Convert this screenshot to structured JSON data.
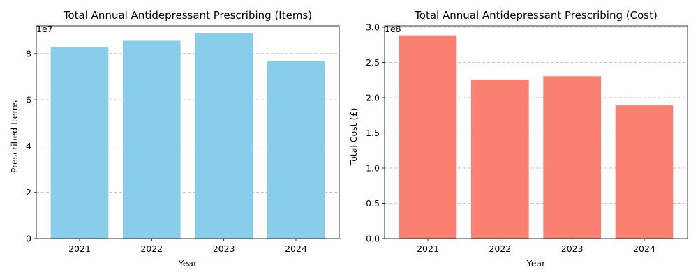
{
  "chart_data": [
    {
      "type": "bar",
      "title": "Total Annual Antidepressant Prescribing (Items)",
      "xlabel": "Year",
      "ylabel": "Prescribed Items",
      "categories": [
        "2021",
        "2022",
        "2023",
        "2024"
      ],
      "values": [
        82700000,
        85500000,
        88700000,
        76700000
      ],
      "ylim": [
        0,
        92000000
      ],
      "yticks": [
        0,
        20000000,
        40000000,
        60000000,
        80000000
      ],
      "ytick_labels": [
        "0",
        "2",
        "4",
        "6",
        "8"
      ],
      "offset_text": "1e7",
      "grid": "y, dashed",
      "color": "#87CEEB"
    },
    {
      "type": "bar",
      "title": "Total Annual Antidepressant Prescribing (Cost)",
      "xlabel": "Year",
      "ylabel": "Total Cost (£)",
      "categories": [
        "2021",
        "2022",
        "2023",
        "2024"
      ],
      "values": [
        288500000,
        225500000,
        230500000,
        189000000
      ],
      "ylim": [
        0,
        302000000
      ],
      "yticks": [
        0,
        50000000,
        100000000,
        150000000,
        200000000,
        250000000,
        300000000
      ],
      "ytick_labels": [
        "0.0",
        "0.5",
        "1.0",
        "1.5",
        "2.0",
        "2.5",
        "3.0"
      ],
      "offset_text": "1e8",
      "grid": "y, dashed",
      "color": "#FA8072"
    }
  ]
}
